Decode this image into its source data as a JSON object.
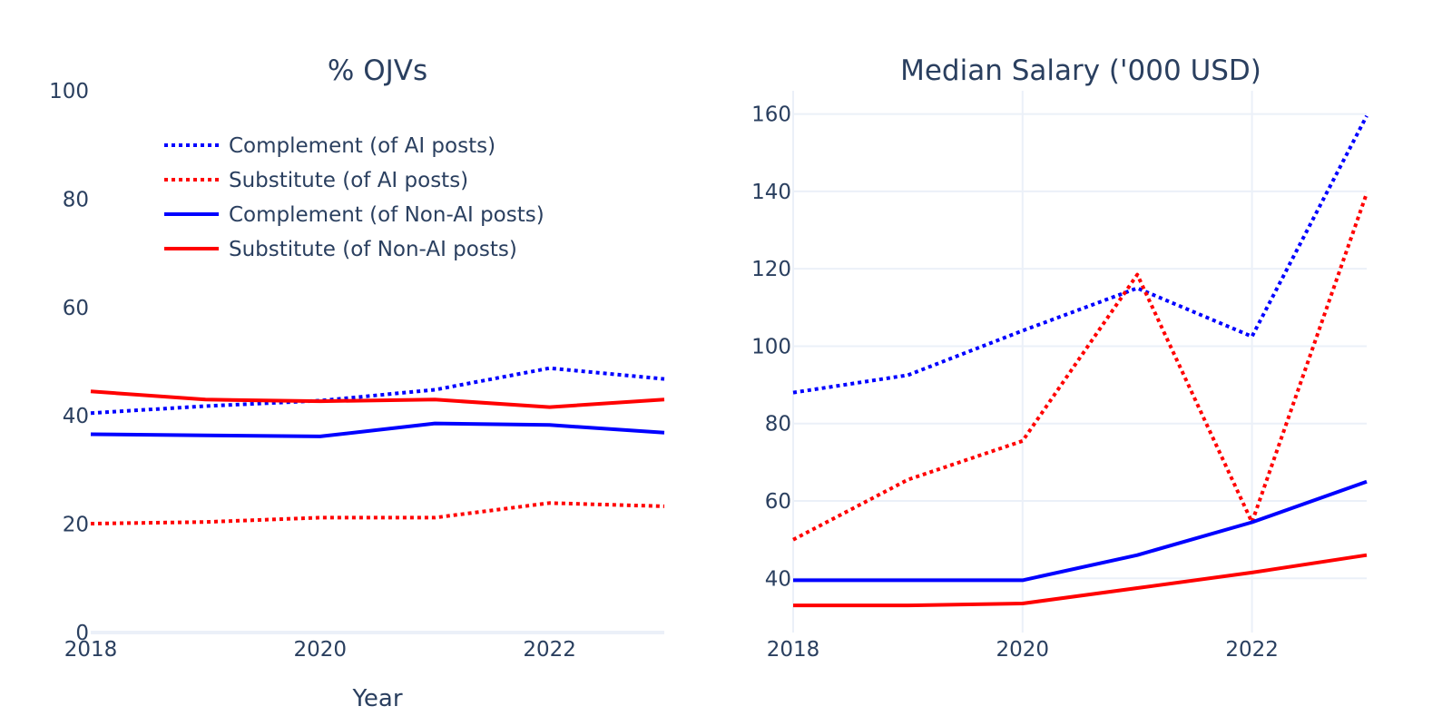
{
  "colors": {
    "complement": "#0000ff",
    "substitute": "#ff0000",
    "text": "#2a3f5f",
    "grid": "#ebf0f8"
  },
  "legend": [
    {
      "name": "Complement (of AI posts)",
      "color": "#0000ff",
      "dash": "dot"
    },
    {
      "name": "Substitute (of AI posts)",
      "color": "#ff0000",
      "dash": "dot"
    },
    {
      "name": "Complement (of Non-AI posts)",
      "color": "#0000ff",
      "dash": "solid"
    },
    {
      "name": "Substitute (of Non-AI posts)",
      "color": "#ff0000",
      "dash": "solid"
    }
  ],
  "chart_data": [
    {
      "type": "line",
      "title": "% OJVs",
      "xlabel": "Year",
      "ylabel": "",
      "x": [
        2018,
        2019,
        2020,
        2021,
        2022,
        2023
      ],
      "xticks": [
        2018,
        2020,
        2022
      ],
      "yticks": [
        0,
        20,
        40,
        60,
        80,
        100
      ],
      "xlim": [
        2018,
        2023
      ],
      "ylim": [
        0,
        100
      ],
      "grid": false,
      "legend_position": "top-left",
      "series": [
        {
          "name": "Complement (of AI posts)",
          "color": "#0000ff",
          "dash": "dot",
          "values": [
            40.5,
            41.8,
            42.8,
            44.8,
            48.8,
            46.8
          ]
        },
        {
          "name": "Substitute (of AI posts)",
          "color": "#ff0000",
          "dash": "dot",
          "values": [
            20.1,
            20.4,
            21.2,
            21.2,
            23.9,
            23.3
          ]
        },
        {
          "name": "Complement (of Non-AI posts)",
          "color": "#0000ff",
          "dash": "solid",
          "values": [
            36.6,
            36.4,
            36.2,
            38.6,
            38.3,
            36.9
          ]
        },
        {
          "name": "Substitute (of Non-AI posts)",
          "color": "#ff0000",
          "dash": "solid",
          "values": [
            44.5,
            43.0,
            42.7,
            43.0,
            41.6,
            43.0
          ]
        }
      ]
    },
    {
      "type": "line",
      "title": "Median Salary ('000 USD)",
      "xlabel": "",
      "ylabel": "",
      "x": [
        2018,
        2019,
        2020,
        2021,
        2022,
        2023
      ],
      "xticks": [
        2018,
        2020,
        2022
      ],
      "yticks": [
        40,
        60,
        80,
        100,
        120,
        140,
        160
      ],
      "xlim": [
        2018,
        2023
      ],
      "ylim": [
        26,
        166
      ],
      "grid": true,
      "series": [
        {
          "name": "Complement (of AI posts)",
          "color": "#0000ff",
          "dash": "dot",
          "values": [
            88,
            92.5,
            104,
            115,
            102.5,
            159.5
          ]
        },
        {
          "name": "Substitute (of AI posts)",
          "color": "#ff0000",
          "dash": "dot",
          "values": [
            50,
            65.5,
            75.5,
            118.5,
            54.5,
            139.5
          ]
        },
        {
          "name": "Complement (of Non-AI posts)",
          "color": "#0000ff",
          "dash": "solid",
          "values": [
            39.5,
            39.5,
            39.5,
            46,
            54.5,
            65
          ]
        },
        {
          "name": "Substitute (of Non-AI posts)",
          "color": "#ff0000",
          "dash": "solid",
          "values": [
            33,
            33,
            33.5,
            37.5,
            41.5,
            46
          ]
        }
      ]
    }
  ]
}
